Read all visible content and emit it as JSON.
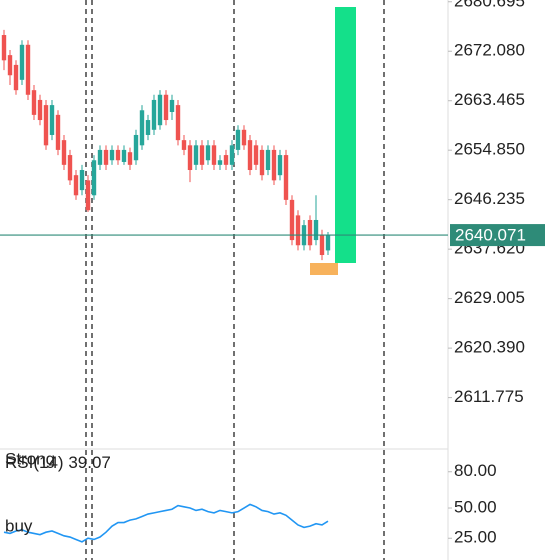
{
  "chart_data": [
    {
      "type": "candlestick",
      "up_color": "#26a69a",
      "down_color": "#ef5350",
      "ylim": [
        2603.0,
        2681.0
      ],
      "yticks": [
        2680.695,
        {
          "value": 2672.08,
          "label": "2672.080"
        },
        2663.465,
        {
          "value": 2654.85,
          "label": "2654.850"
        },
        2646.235,
        {
          "value": 2637.62,
          "label": "2637.620"
        },
        2629.005,
        {
          "value": 2620.39,
          "label": "2620.390"
        },
        2611.775
      ],
      "current_price": 2640.071,
      "current_price_color": "#2e8b78",
      "candles": [
        [
          2674.9,
          2675.8,
          2668.8,
          2670.5
        ],
        [
          2671.4,
          2672.3,
          2666.2,
          2667.9
        ],
        [
          2669.7,
          2670.5,
          2664.5,
          2665.3
        ],
        [
          2667.1,
          2674.0,
          2666.2,
          2673.2
        ],
        [
          2673.2,
          2674.0,
          2663.6,
          2664.5
        ],
        [
          2665.3,
          2666.2,
          2660.1,
          2661.0
        ],
        [
          2663.6,
          2664.5,
          2659.2,
          2660.1
        ],
        [
          2662.7,
          2663.6,
          2654.9,
          2655.7
        ],
        [
          2657.5,
          2663.6,
          2656.6,
          2662.7
        ],
        [
          2661.0,
          2661.8,
          2654.0,
          2654.9
        ],
        [
          2656.6,
          2657.5,
          2651.4,
          2652.3
        ],
        [
          2654.0,
          2654.9,
          2648.8,
          2649.6
        ],
        [
          2650.5,
          2651.4,
          2646.2,
          2647.0
        ],
        [
          2647.9,
          2652.3,
          2647.0,
          2651.4
        ],
        [
          2649.6,
          2650.5,
          2644.1,
          2644.4
        ],
        [
          2647.0,
          2654.0,
          2646.2,
          2653.1
        ],
        [
          2652.3,
          2655.7,
          2651.4,
          2654.9
        ],
        [
          2654.9,
          2655.7,
          2651.4,
          2652.3
        ],
        [
          2653.1,
          2655.7,
          2652.3,
          2654.9
        ],
        [
          2654.9,
          2655.7,
          2652.3,
          2653.1
        ],
        [
          2652.8,
          2655.7,
          2652.3,
          2654.9
        ],
        [
          2654.5,
          2655.3,
          2651.4,
          2652.3
        ],
        [
          2653.1,
          2658.4,
          2652.3,
          2657.5
        ],
        [
          2655.7,
          2662.7,
          2654.9,
          2661.8
        ],
        [
          2657.5,
          2661.0,
          2656.6,
          2660.1
        ],
        [
          2658.4,
          2664.5,
          2657.5,
          2663.6
        ],
        [
          2659.2,
          2665.3,
          2658.4,
          2664.5
        ],
        [
          2664.5,
          2665.3,
          2659.2,
          2660.1
        ],
        [
          2661.5,
          2664.5,
          2660.1,
          2663.6
        ],
        [
          2662.7,
          2663.6,
          2655.7,
          2656.6
        ],
        [
          2656.6,
          2657.5,
          2654.0,
          2654.9
        ],
        [
          2655.7,
          2656.6,
          2649.3,
          2651.4
        ],
        [
          2652.3,
          2656.6,
          2651.4,
          2655.7
        ],
        [
          2655.7,
          2656.6,
          2651.4,
          2652.3
        ],
        [
          2653.1,
          2656.6,
          2652.3,
          2655.7
        ],
        [
          2655.7,
          2656.6,
          2651.4,
          2652.3
        ],
        [
          2652.3,
          2654.0,
          2651.4,
          2653.1
        ],
        [
          2654.0,
          2654.9,
          2651.4,
          2652.3
        ],
        [
          2652.3,
          2656.6,
          2651.4,
          2655.7
        ],
        [
          2654.9,
          2659.2,
          2654.0,
          2658.4
        ],
        [
          2658.4,
          2659.2,
          2654.9,
          2655.7
        ],
        [
          2656.6,
          2657.5,
          2650.5,
          2651.4
        ],
        [
          2655.7,
          2656.6,
          2651.4,
          2652.3
        ],
        [
          2654.9,
          2655.7,
          2649.6,
          2650.5
        ],
        [
          2651.4,
          2655.7,
          2650.5,
          2654.9
        ],
        [
          2654.9,
          2655.7,
          2648.8,
          2649.6
        ],
        [
          2650.5,
          2654.9,
          2649.6,
          2654.0
        ],
        [
          2654.0,
          2654.9,
          2645.3,
          2646.2
        ],
        [
          2646.2,
          2647.0,
          2638.3,
          2639.2
        ],
        [
          2643.5,
          2644.4,
          2637.4,
          2638.3
        ],
        [
          2638.3,
          2642.7,
          2637.4,
          2641.8
        ],
        [
          2642.7,
          2643.5,
          2637.4,
          2638.3
        ],
        [
          2639.2,
          2647.0,
          2638.3,
          2642.7
        ],
        [
          2640.1,
          2641.0,
          2635.7,
          2636.6
        ],
        [
          2637.4,
          2640.6,
          2636.6,
          2640.1
        ]
      ]
    },
    {
      "type": "line",
      "name": "RSI(14)",
      "color": "#2196f3",
      "ylim": [
        7,
        98
      ],
      "yticks": [
        {
          "value": 80,
          "label": "80.00"
        },
        {
          "value": 50,
          "label": "50.00"
        },
        {
          "value": 25,
          "label": "25.00"
        }
      ],
      "annotations": [
        "Strong",
        "buy"
      ],
      "values": [
        30,
        29,
        31,
        32,
        30,
        29,
        28,
        30,
        31,
        29,
        27,
        26,
        24,
        22,
        25,
        24,
        26,
        30,
        35,
        38,
        38,
        40,
        41,
        43,
        45,
        46,
        47,
        48,
        49,
        52,
        51,
        50,
        48,
        49,
        47,
        46,
        48,
        47,
        46,
        47,
        50,
        53,
        51,
        48,
        47,
        45,
        46,
        44,
        40,
        36,
        34,
        35,
        37,
        36,
        39.07
      ]
    }
  ]
}
